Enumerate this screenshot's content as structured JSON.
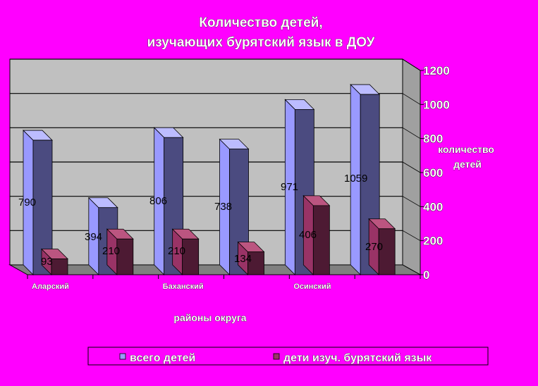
{
  "chart_data": {
    "type": "bar",
    "title_lines": [
      "Количество детей,",
      "изучающих бурятский язык в ДОУ"
    ],
    "xlabel": "районы округа",
    "ylabel_lines": [
      "количество",
      "детей"
    ],
    "categories": [
      "Аларский",
      "",
      "Баханский",
      "",
      "Осинский",
      ""
    ],
    "series": [
      {
        "name": "всего детей",
        "values": [
          790,
          394,
          806,
          738,
          971,
          1059
        ]
      },
      {
        "name": "дети изуч. бурятский язык",
        "values": [
          93,
          210,
          210,
          134,
          406,
          270
        ]
      }
    ],
    "ylim": [
      0,
      1200
    ],
    "yticks": [
      0,
      200,
      400,
      600,
      800,
      1000,
      1200
    ],
    "grid": true,
    "legend_position": "bottom",
    "colors": {
      "series1_front": "#9999ff",
      "series1_side": "#4b4b80",
      "series1_top": "#bcbcff",
      "series2_front": "#993366",
      "series2_side": "#4d1a33",
      "series2_top": "#bb5580",
      "plot_bg": "#c0c0c0",
      "floor": "#808080",
      "page_bg": "#ff00ff"
    }
  }
}
